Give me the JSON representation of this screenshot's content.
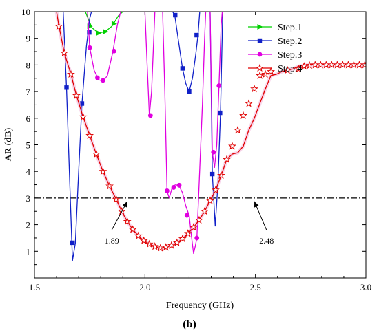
{
  "chart_data": {
    "type": "line",
    "subfigure_label": "(b)",
    "xlabel": "Frequency (GHz)",
    "ylabel": "AR (dB)",
    "xlim": [
      1.5,
      3.0
    ],
    "ylim": [
      0,
      10
    ],
    "xticks": [
      1.5,
      2.0,
      2.5,
      3.0
    ],
    "xtick_labels": [
      "1.5",
      "2.0",
      "2.5",
      "3.0"
    ],
    "yticks": [
      1,
      2,
      3,
      4,
      5,
      6,
      7,
      8,
      9,
      10
    ],
    "ytick_labels": [
      "1",
      "2",
      "3",
      "4",
      "5",
      "6",
      "7",
      "8",
      "9",
      "10"
    ],
    "grid": false,
    "legend_position": "top-right",
    "reference_line": {
      "y": 3,
      "style": "dash-dot",
      "color": "#000000"
    },
    "annotations": [
      {
        "text": "1.89",
        "x": 1.92,
        "y": 2.95,
        "label_x": 1.85,
        "label_y": 1.6
      },
      {
        "text": "2.48",
        "x": 2.495,
        "y": 2.95,
        "label_x": 2.55,
        "label_y": 1.6
      }
    ],
    "series": [
      {
        "name": "Step.1",
        "color": "#00d000",
        "marker": "triangle-right",
        "x": [
          1.73,
          1.76,
          1.79,
          1.82,
          1.85,
          1.88,
          1.9
        ],
        "y": [
          10.0,
          9.4,
          9.2,
          9.25,
          9.45,
          9.85,
          10.0
        ],
        "marker_x": [
          1.75,
          1.79,
          1.82,
          1.86
        ],
        "marker_y": [
          9.45,
          9.2,
          9.25,
          9.55
        ]
      },
      {
        "name": "Step.2",
        "color": "#1020c8",
        "marker": "square",
        "segments": [
          {
            "x": [
              1.63,
              1.645,
              1.66,
              1.672,
              1.685,
              1.7,
              1.715,
              1.735,
              1.75,
              1.758
            ],
            "y": [
              10.0,
              7.15,
              3.5,
              0.65,
              1.3,
              4.0,
              6.55,
              8.7,
              9.75,
              10.0
            ]
          },
          {
            "x": [
              2.125,
              2.135,
              2.15,
              2.17,
              2.185,
              2.2,
              2.215,
              2.23,
              2.24,
              2.248
            ],
            "y": [
              10.0,
              9.87,
              9.0,
              7.87,
              7.3,
              7.0,
              7.5,
              8.4,
              9.12,
              10.0
            ]
          },
          {
            "x": [
              2.295,
              2.305,
              2.318,
              2.33,
              2.342,
              2.352
            ],
            "y": [
              10.0,
              3.9,
              1.95,
              3.5,
              6.2,
              10.0
            ]
          }
        ],
        "marker_x": [
          1.645,
          1.672,
          1.715,
          1.748,
          2.137,
          2.17,
          2.2,
          2.234,
          2.305,
          2.34
        ],
        "marker_y": [
          7.15,
          1.32,
          6.55,
          9.22,
          9.87,
          7.87,
          7.0,
          9.12,
          3.9,
          6.2
        ]
      },
      {
        "name": "Step.3",
        "color": "#e000e0",
        "marker": "circle",
        "segments": [
          {
            "x": [
              1.74,
              1.75,
              1.77,
              1.79,
              1.81,
              1.83,
              1.855,
              1.875,
              1.89
            ],
            "y": [
              10.0,
              8.65,
              7.8,
              7.45,
              7.38,
              7.6,
              8.5,
              9.5,
              10.0
            ]
          },
          {
            "x": [
              2.0,
              2.01,
              2.02,
              2.03,
              2.04,
              2.045
            ],
            "y": [
              10.0,
              8.0,
              6.1,
              7.0,
              9.0,
              10.0
            ]
          },
          {
            "x": [
              2.08,
              2.09,
              2.1,
              2.11,
              2.125,
              2.14,
              2.155,
              2.17,
              2.185,
              2.2,
              2.21,
              2.22,
              2.228,
              2.235,
              2.245,
              2.26,
              2.27,
              2.275
            ],
            "y": [
              10.0,
              7.0,
              3.25,
              3.0,
              3.45,
              3.5,
              3.45,
              3.2,
              2.7,
              2.35,
              1.6,
              0.92,
              1.2,
              1.5,
              3.5,
              6.5,
              9.0,
              10.0
            ]
          },
          {
            "x": [
              2.295,
              2.305,
              2.315,
              2.325,
              2.335,
              2.345,
              2.35
            ],
            "y": [
              10.0,
              4.7,
              4.15,
              5.0,
              7.2,
              9.5,
              10.0
            ]
          }
        ],
        "marker_x": [
          1.75,
          1.785,
          1.81,
          1.86,
          2.025,
          2.1,
          2.13,
          2.155,
          2.19,
          2.235,
          2.31,
          2.335
        ],
        "marker_y": [
          8.65,
          7.52,
          7.42,
          8.52,
          6.1,
          3.27,
          3.4,
          3.48,
          2.35,
          1.5,
          4.72,
          7.22
        ]
      },
      {
        "name": "Step.4",
        "color": "#e00000",
        "marker": "star",
        "x": [
          1.6,
          1.61,
          1.635,
          1.665,
          1.69,
          1.72,
          1.75,
          1.78,
          1.81,
          1.84,
          1.87,
          1.895,
          1.92,
          1.945,
          1.97,
          1.995,
          2.02,
          2.045,
          2.07,
          2.095,
          2.12,
          2.145,
          2.17,
          2.195,
          2.22,
          2.245,
          2.27,
          2.295,
          2.32,
          2.345,
          2.37,
          2.395,
          2.42,
          2.445,
          2.47,
          2.495,
          2.52,
          2.545,
          2.57,
          2.595,
          2.62,
          2.645,
          2.67,
          2.695,
          2.72,
          2.745,
          2.77,
          2.795,
          2.82,
          2.845,
          2.87,
          2.895,
          2.92,
          2.945,
          2.97,
          3.0
        ],
        "y": [
          10.0,
          9.5,
          8.45,
          7.65,
          6.85,
          6.05,
          5.35,
          4.65,
          4.0,
          3.45,
          2.95,
          2.5,
          2.12,
          1.82,
          1.58,
          1.4,
          1.27,
          1.18,
          1.12,
          1.15,
          1.22,
          1.32,
          1.47,
          1.67,
          1.9,
          2.17,
          2.5,
          2.9,
          3.3,
          3.85,
          4.45,
          4.65,
          4.7,
          4.95,
          5.55,
          6.0,
          6.55,
          7.1,
          7.6,
          7.65,
          7.75,
          7.8,
          7.85,
          7.95,
          7.98,
          8.0,
          8.0,
          8.0,
          8.0,
          8.0,
          8.0,
          8.0,
          8.0,
          8.0,
          8.0,
          8.0
        ],
        "marker_x": [
          1.61,
          1.635,
          1.665,
          1.69,
          1.72,
          1.75,
          1.78,
          1.81,
          1.84,
          1.87,
          1.895,
          1.92,
          1.945,
          1.97,
          1.995,
          2.02,
          2.045,
          2.07,
          2.095,
          2.12,
          2.145,
          2.17,
          2.195,
          2.22,
          2.245,
          2.27,
          2.295,
          2.32,
          2.345,
          2.37,
          2.395,
          2.42,
          2.445,
          2.47,
          2.495,
          2.52,
          2.545,
          2.57,
          2.645,
          2.695,
          2.72,
          2.745,
          2.77,
          2.795,
          2.82,
          2.845,
          2.87,
          2.895,
          2.92,
          2.945,
          2.97,
          2.995
        ],
        "marker_y": [
          9.45,
          8.45,
          7.65,
          6.85,
          6.05,
          5.35,
          4.65,
          4.0,
          3.45,
          2.95,
          2.5,
          2.12,
          1.82,
          1.58,
          1.4,
          1.27,
          1.18,
          1.12,
          1.15,
          1.22,
          1.32,
          1.47,
          1.67,
          1.9,
          2.17,
          2.5,
          2.9,
          3.3,
          3.85,
          4.45,
          4.95,
          5.55,
          6.1,
          6.55,
          7.1,
          7.6,
          7.65,
          7.75,
          7.8,
          7.85,
          7.95,
          7.98,
          8.0,
          8.0,
          8.0,
          8.0,
          8.0,
          8.0,
          8.0,
          8.0,
          8.0,
          8.0
        ]
      }
    ]
  }
}
